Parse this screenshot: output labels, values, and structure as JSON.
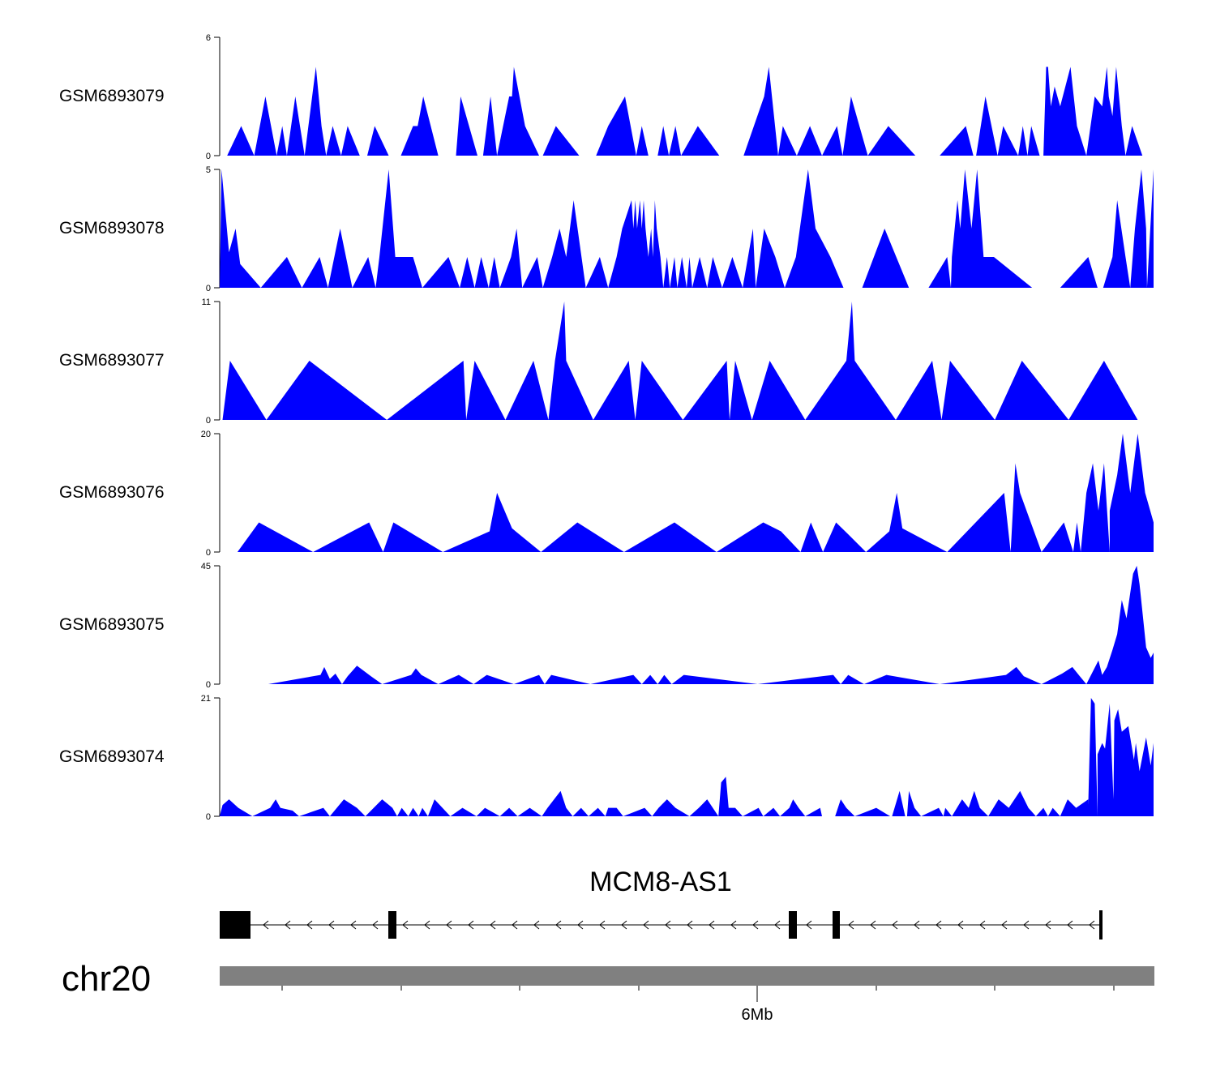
{
  "chart_data": {
    "type": "area",
    "title": "",
    "xlabel": "6Mb",
    "colors": {
      "signal": "#0000ff",
      "ideogram": "#808080",
      "gene": "#000000",
      "axis": "#000000"
    },
    "x_tick_label": "6Mb",
    "series": [
      {
        "name": "GSM6893079",
        "ylim": [
          0,
          6
        ],
        "y_tick_labels": [
          "0",
          "6"
        ],
        "points": [
          [
            0.01,
            0
          ],
          [
            0.022,
            1.5
          ],
          [
            0.036,
            0
          ],
          [
            0.049,
            3
          ],
          [
            0.061,
            0
          ],
          [
            0.067,
            1.5
          ],
          [
            0.073,
            0
          ],
          [
            0.081,
            3
          ],
          [
            0.091,
            0
          ],
          [
            0.104,
            4.5
          ],
          [
            0.109,
            1.5
          ],
          [
            0.114,
            0
          ],
          [
            0.121,
            1.5
          ],
          [
            0.13,
            0
          ],
          [
            0.138,
            1.5
          ],
          [
            0.151,
            0
          ],
          [
            0.159,
            0
          ],
          [
            0.166,
            1.5
          ],
          [
            0.182,
            0
          ],
          [
            0.193,
            0
          ],
          [
            0.207,
            1.5
          ],
          [
            0.212,
            1.5
          ],
          [
            0.218,
            3
          ],
          [
            0.23,
            0
          ],
          [
            0.25,
            0
          ],
          [
            0.255,
            3
          ],
          [
            0.268,
            0
          ],
          [
            0.282,
            0
          ],
          [
            0.283,
            0
          ],
          [
            0.282,
            0
          ],
          [
            0.283,
            0
          ],
          [
            0.282,
            0
          ],
          [
            0.282,
            0
          ],
          [
            0.282,
            0
          ],
          [
            0.282,
            0
          ],
          [
            0.282,
            0
          ],
          [
            0.282,
            0
          ],
          [
            0.282,
            0
          ],
          [
            0.282,
            0
          ],
          [
            0.282,
            0
          ]
        ]
      }
    ]
  },
  "tracks": [
    {
      "name": "GSM6893079",
      "ymax_label": "6",
      "ymin_label": "0",
      "max": 6,
      "points": [
        [
          0.008,
          0
        ],
        [
          0.023,
          1.5
        ],
        [
          0.037,
          0
        ],
        [
          0.049,
          3
        ],
        [
          0.061,
          0
        ],
        [
          0.067,
          1.5
        ],
        [
          0.072,
          0
        ],
        [
          0.081,
          3
        ],
        [
          0.091,
          0
        ],
        [
          0.103,
          4.5
        ],
        [
          0.109,
          1.5
        ],
        [
          0.114,
          0
        ],
        [
          0.121,
          1.5
        ],
        [
          0.13,
          0
        ],
        [
          0.137,
          1.5
        ],
        [
          0.15,
          0
        ],
        [
          0.158,
          0
        ],
        [
          0.166,
          1.5
        ],
        [
          0.181,
          0
        ],
        [
          0.194,
          0
        ],
        [
          0.207,
          1.5
        ],
        [
          0.212,
          1.5
        ],
        [
          0.218,
          3
        ],
        [
          0.234,
          0
        ],
        [
          0.253,
          0
        ],
        [
          0.258,
          3
        ],
        [
          0.278,
          0
        ],
        [
          0.28,
          0
        ],
        [
          0.281,
          0
        ],
        [
          0.282,
          0
        ],
        [
          0.283,
          0
        ],
        [
          0.284,
          0
        ],
        [
          0.285,
          0
        ],
        [
          0.286,
          0
        ],
        [
          0.287,
          0
        ],
        [
          0.288,
          0
        ],
        [
          0.289,
          0
        ],
        [
          0.29,
          0
        ],
        [
          0.291,
          0
        ],
        [
          0.292,
          0
        ]
      ]
    }
  ],
  "gene": {
    "name": "MCM8-AS1"
  },
  "chromosome": {
    "name": "chr20"
  }
}
